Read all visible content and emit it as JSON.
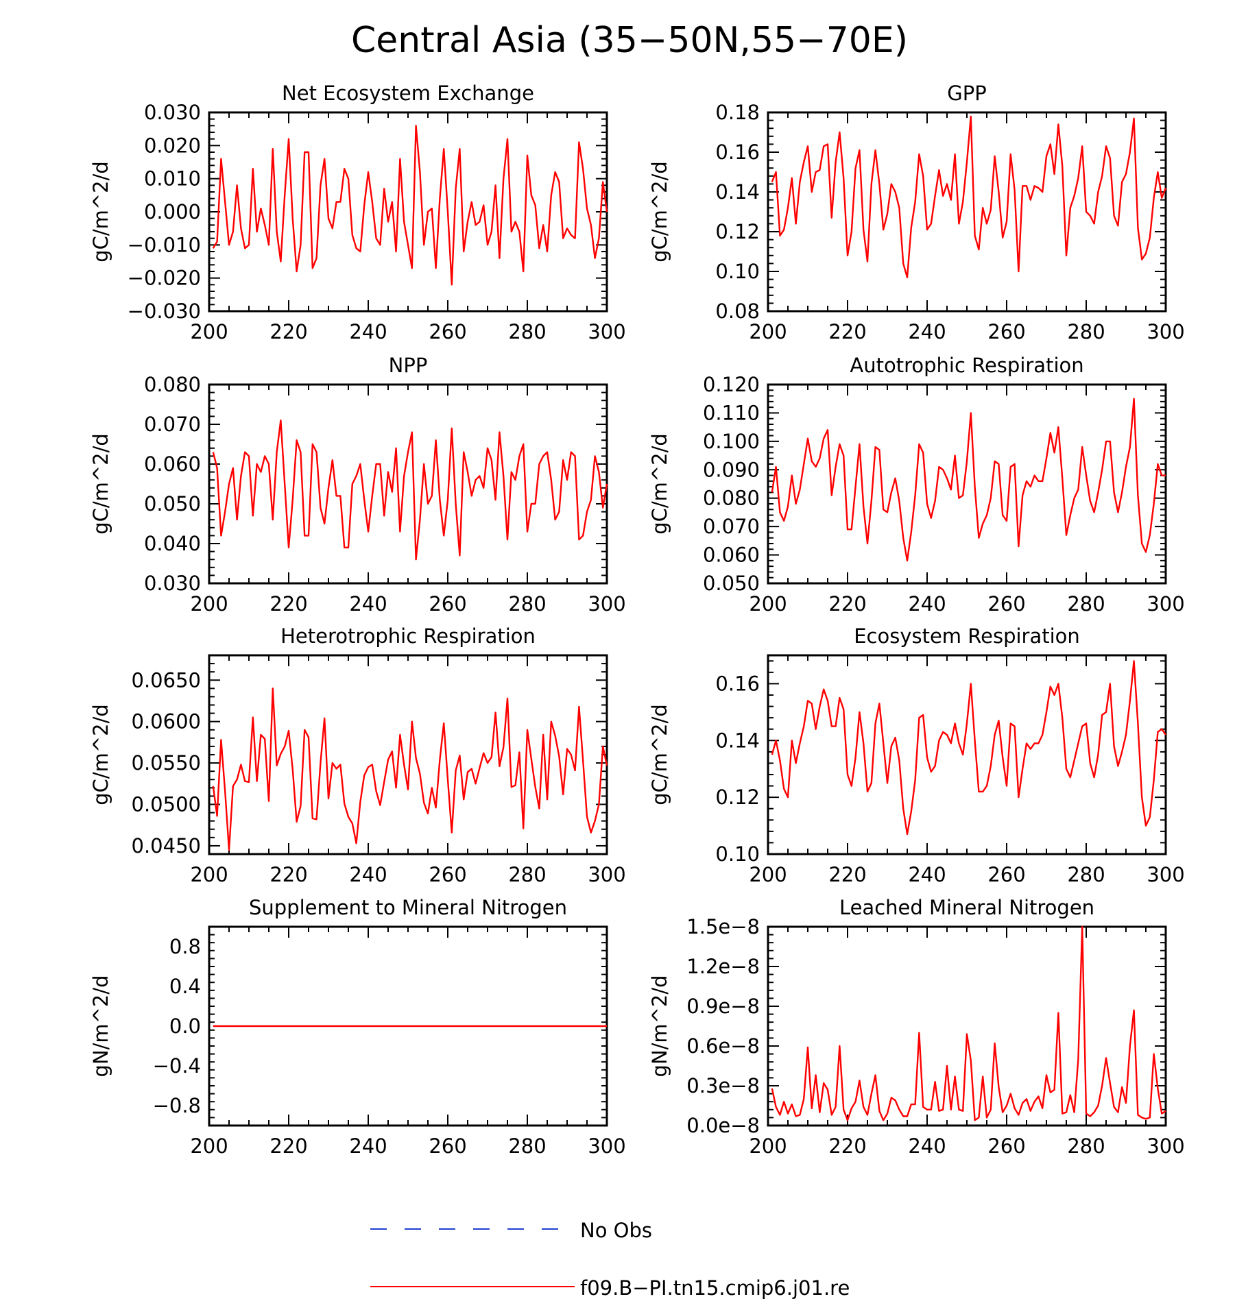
{
  "figure": {
    "title": "Central Asia (35−50N,55−70E)"
  },
  "legend": {
    "items": [
      {
        "label": "No Obs",
        "color": "#1f3fcf",
        "style": "dashed"
      },
      {
        "label": "f09.B−PI.tn15.cmip6.j01.re",
        "color": "#ff0000",
        "style": "solid"
      }
    ]
  },
  "chart_data": [
    {
      "type": "line",
      "title": "Net Ecosystem Exchange",
      "ylabel": "gC/m^2/d",
      "xlim": [
        200,
        300
      ],
      "ylim": [
        -0.03,
        0.03
      ],
      "xticks": [
        "200",
        "220",
        "240",
        "260",
        "280",
        "300"
      ],
      "yticks": [
        "−0.030",
        "−0.020",
        "−0.010",
        "0.000",
        "0.010",
        "0.020",
        "0.030"
      ],
      "series": [
        {
          "name": "f09.B−PI.tn15.cmip6.j01.re",
          "color": "#ff0000",
          "x_start": 201,
          "x_step": 1,
          "values": [
            -0.011,
            -0.009,
            0.016,
            0.003,
            -0.01,
            -0.006,
            0.008,
            -0.005,
            -0.011,
            -0.01,
            0.013,
            -0.006,
            0.001,
            -0.004,
            -0.01,
            0.019,
            -0.006,
            -0.015,
            0.005,
            0.022,
            -0.002,
            -0.018,
            -0.01,
            0.018,
            0.018,
            -0.017,
            -0.014,
            0.008,
            0.016,
            -0.002,
            -0.005,
            0.003,
            0.003,
            0.013,
            0.01,
            -0.007,
            -0.011,
            -0.012,
            0.002,
            0.012,
            0.003,
            -0.008,
            -0.01,
            0.007,
            -0.003,
            0.003,
            -0.012,
            0.016,
            -0.003,
            -0.01,
            -0.017,
            0.026,
            0.012,
            -0.01,
            0.0,
            0.001,
            -0.017,
            0.004,
            0.019,
            0.0,
            -0.022,
            0.007,
            0.019,
            -0.012,
            -0.003,
            0.003,
            -0.004,
            -0.003,
            0.002,
            -0.01,
            -0.006,
            0.008,
            -0.014,
            0.01,
            0.022,
            -0.006,
            -0.003,
            -0.006,
            -0.018,
            0.017,
            0.005,
            0.002,
            -0.011,
            -0.004,
            -0.012,
            0.005,
            0.012,
            0.009,
            -0.008,
            -0.005,
            -0.007,
            -0.008,
            0.021,
            0.013,
            0.001,
            -0.004,
            -0.014,
            -0.008,
            0.009,
            0.0
          ]
        }
      ]
    },
    {
      "type": "line",
      "title": "GPP",
      "ylabel": "gC/m^2/d",
      "xlim": [
        200,
        300
      ],
      "ylim": [
        0.08,
        0.18
      ],
      "xticks": [
        "200",
        "220",
        "240",
        "260",
        "280",
        "300"
      ],
      "yticks": [
        "0.08",
        "0.10",
        "0.12",
        "0.14",
        "0.16",
        "0.18"
      ],
      "series": [
        {
          "name": "f09.B−PI.tn15.cmip6.j01.re",
          "color": "#ff0000",
          "x_start": 201,
          "x_step": 1,
          "values": [
            0.145,
            0.15,
            0.118,
            0.121,
            0.132,
            0.147,
            0.124,
            0.145,
            0.155,
            0.163,
            0.14,
            0.15,
            0.151,
            0.163,
            0.164,
            0.127,
            0.155,
            0.17,
            0.147,
            0.108,
            0.12,
            0.152,
            0.161,
            0.121,
            0.105,
            0.144,
            0.161,
            0.144,
            0.121,
            0.129,
            0.144,
            0.14,
            0.132,
            0.104,
            0.097,
            0.122,
            0.135,
            0.159,
            0.148,
            0.121,
            0.124,
            0.138,
            0.151,
            0.138,
            0.144,
            0.136,
            0.159,
            0.124,
            0.135,
            0.155,
            0.178,
            0.118,
            0.111,
            0.132,
            0.124,
            0.131,
            0.158,
            0.14,
            0.117,
            0.125,
            0.159,
            0.141,
            0.1,
            0.143,
            0.143,
            0.136,
            0.143,
            0.142,
            0.14,
            0.158,
            0.164,
            0.149,
            0.174,
            0.153,
            0.108,
            0.132,
            0.138,
            0.147,
            0.163,
            0.13,
            0.128,
            0.124,
            0.14,
            0.148,
            0.163,
            0.157,
            0.128,
            0.123,
            0.145,
            0.149,
            0.16,
            0.177,
            0.122,
            0.106,
            0.109,
            0.117,
            0.137,
            0.15,
            0.137,
            0.142
          ]
        }
      ]
    },
    {
      "type": "line",
      "title": "NPP",
      "ylabel": "gC/m^2/d",
      "xlim": [
        200,
        300
      ],
      "ylim": [
        0.03,
        0.08
      ],
      "xticks": [
        "200",
        "220",
        "240",
        "260",
        "280",
        "300"
      ],
      "yticks": [
        "0.030",
        "0.040",
        "0.050",
        "0.060",
        "0.070",
        "0.080"
      ],
      "series": [
        {
          "name": "f09.B−PI.tn15.cmip6.j01.re",
          "color": "#ff0000",
          "x_start": 201,
          "x_step": 1,
          "values": [
            0.063,
            0.059,
            0.042,
            0.048,
            0.055,
            0.059,
            0.046,
            0.057,
            0.063,
            0.062,
            0.047,
            0.06,
            0.058,
            0.062,
            0.06,
            0.046,
            0.063,
            0.071,
            0.055,
            0.039,
            0.051,
            0.066,
            0.063,
            0.042,
            0.042,
            0.065,
            0.063,
            0.049,
            0.045,
            0.054,
            0.061,
            0.052,
            0.052,
            0.039,
            0.039,
            0.055,
            0.057,
            0.06,
            0.051,
            0.043,
            0.052,
            0.06,
            0.06,
            0.047,
            0.058,
            0.053,
            0.064,
            0.043,
            0.057,
            0.063,
            0.068,
            0.036,
            0.046,
            0.06,
            0.05,
            0.052,
            0.066,
            0.051,
            0.042,
            0.051,
            0.069,
            0.05,
            0.037,
            0.063,
            0.058,
            0.052,
            0.056,
            0.057,
            0.054,
            0.064,
            0.061,
            0.051,
            0.068,
            0.057,
            0.041,
            0.058,
            0.056,
            0.062,
            0.065,
            0.043,
            0.05,
            0.05,
            0.06,
            0.062,
            0.063,
            0.056,
            0.046,
            0.048,
            0.061,
            0.056,
            0.063,
            0.062,
            0.041,
            0.042,
            0.048,
            0.051,
            0.062,
            0.058,
            0.049,
            0.055
          ]
        }
      ]
    },
    {
      "type": "line",
      "title": "Autotrophic Respiration",
      "ylabel": "gC/m^2/d",
      "xlim": [
        200,
        300
      ],
      "ylim": [
        0.05,
        0.12
      ],
      "xticks": [
        "200",
        "220",
        "240",
        "260",
        "280",
        "300"
      ],
      "yticks": [
        "0.050",
        "0.060",
        "0.070",
        "0.080",
        "0.090",
        "0.100",
        "0.110",
        "0.120"
      ],
      "series": [
        {
          "name": "f09.B−PI.tn15.cmip6.j01.re",
          "color": "#ff0000",
          "x_start": 201,
          "x_step": 1,
          "values": [
            0.082,
            0.091,
            0.075,
            0.072,
            0.077,
            0.088,
            0.078,
            0.083,
            0.092,
            0.101,
            0.093,
            0.091,
            0.094,
            0.101,
            0.104,
            0.081,
            0.091,
            0.099,
            0.095,
            0.069,
            0.069,
            0.084,
            0.099,
            0.077,
            0.064,
            0.079,
            0.098,
            0.097,
            0.076,
            0.075,
            0.082,
            0.087,
            0.079,
            0.066,
            0.058,
            0.068,
            0.081,
            0.099,
            0.096,
            0.078,
            0.073,
            0.079,
            0.091,
            0.09,
            0.087,
            0.083,
            0.095,
            0.08,
            0.081,
            0.093,
            0.11,
            0.084,
            0.066,
            0.071,
            0.074,
            0.08,
            0.093,
            0.092,
            0.074,
            0.072,
            0.091,
            0.092,
            0.063,
            0.081,
            0.086,
            0.084,
            0.088,
            0.086,
            0.086,
            0.094,
            0.103,
            0.096,
            0.105,
            0.087,
            0.067,
            0.074,
            0.08,
            0.083,
            0.098,
            0.088,
            0.079,
            0.075,
            0.082,
            0.09,
            0.1,
            0.1,
            0.082,
            0.075,
            0.082,
            0.091,
            0.098,
            0.115,
            0.081,
            0.064,
            0.061,
            0.067,
            0.078,
            0.092,
            0.088,
            0.088
          ]
        }
      ]
    },
    {
      "type": "line",
      "title": "Heterotrophic Respiration",
      "ylabel": "gC/m^2/d",
      "xlim": [
        200,
        300
      ],
      "ylim": [
        0.044,
        0.068
      ],
      "xticks": [
        "200",
        "220",
        "240",
        "260",
        "280",
        "300"
      ],
      "yticks": [
        "0.0450",
        "0.0500",
        "0.0550",
        "0.0600",
        "0.0650"
      ],
      "series": [
        {
          "name": "f09.B−PI.tn15.cmip6.j01.re",
          "color": "#ff0000",
          "x_start": 201,
          "x_step": 1,
          "values": [
            0.0522,
            0.0486,
            0.0578,
            0.0516,
            0.0445,
            0.0522,
            0.053,
            0.0548,
            0.0528,
            0.0527,
            0.0605,
            0.0528,
            0.0584,
            0.0579,
            0.0504,
            0.064,
            0.0547,
            0.0561,
            0.057,
            0.0589,
            0.0542,
            0.0479,
            0.0498,
            0.059,
            0.0581,
            0.0483,
            0.0482,
            0.055,
            0.0604,
            0.0507,
            0.055,
            0.0543,
            0.0548,
            0.0501,
            0.0485,
            0.0477,
            0.0453,
            0.0503,
            0.0535,
            0.0545,
            0.0548,
            0.0516,
            0.0499,
            0.0527,
            0.0554,
            0.0564,
            0.052,
            0.0584,
            0.0548,
            0.0518,
            0.06,
            0.0556,
            0.0537,
            0.0502,
            0.0489,
            0.052,
            0.0496,
            0.0554,
            0.0598,
            0.053,
            0.0466,
            0.0541,
            0.0559,
            0.0506,
            0.0539,
            0.0543,
            0.0525,
            0.0544,
            0.0562,
            0.055,
            0.0557,
            0.0611,
            0.0546,
            0.0569,
            0.0628,
            0.0521,
            0.0523,
            0.0563,
            0.0471,
            0.059,
            0.0555,
            0.0521,
            0.0495,
            0.0584,
            0.0506,
            0.06,
            0.0583,
            0.0558,
            0.0512,
            0.0567,
            0.056,
            0.0541,
            0.0618,
            0.0553,
            0.0485,
            0.0466,
            0.048,
            0.05,
            0.057,
            0.0547
          ]
        }
      ]
    },
    {
      "type": "line",
      "title": "Ecosystem Respiration",
      "ylabel": "gC/m^2/d",
      "xlim": [
        200,
        300
      ],
      "ylim": [
        0.1,
        0.17
      ],
      "xticks": [
        "200",
        "220",
        "240",
        "260",
        "280",
        "300"
      ],
      "yticks": [
        "0.10",
        "0.12",
        "0.14",
        "0.16"
      ],
      "series": [
        {
          "name": "f09.B−PI.tn15.cmip6.j01.re",
          "color": "#ff0000",
          "x_start": 201,
          "x_step": 1,
          "values": [
            0.135,
            0.14,
            0.133,
            0.123,
            0.12,
            0.14,
            0.132,
            0.139,
            0.145,
            0.154,
            0.153,
            0.144,
            0.152,
            0.158,
            0.154,
            0.145,
            0.145,
            0.155,
            0.151,
            0.128,
            0.124,
            0.134,
            0.15,
            0.139,
            0.122,
            0.125,
            0.146,
            0.153,
            0.139,
            0.125,
            0.138,
            0.141,
            0.133,
            0.116,
            0.107,
            0.115,
            0.126,
            0.148,
            0.149,
            0.134,
            0.129,
            0.131,
            0.14,
            0.143,
            0.142,
            0.139,
            0.146,
            0.139,
            0.135,
            0.146,
            0.16,
            0.14,
            0.122,
            0.122,
            0.124,
            0.131,
            0.142,
            0.147,
            0.134,
            0.124,
            0.146,
            0.145,
            0.12,
            0.13,
            0.139,
            0.137,
            0.139,
            0.139,
            0.142,
            0.15,
            0.159,
            0.156,
            0.16,
            0.148,
            0.13,
            0.127,
            0.133,
            0.139,
            0.145,
            0.146,
            0.132,
            0.127,
            0.135,
            0.149,
            0.15,
            0.16,
            0.138,
            0.131,
            0.136,
            0.142,
            0.154,
            0.168,
            0.146,
            0.12,
            0.11,
            0.113,
            0.126,
            0.143,
            0.144,
            0.142
          ]
        }
      ]
    },
    {
      "type": "line",
      "title": "Supplement to Mineral Nitrogen",
      "ylabel": "gN/m^2/d",
      "xlim": [
        200,
        300
      ],
      "ylim": [
        -1.0,
        1.0
      ],
      "xticks": [
        "200",
        "220",
        "240",
        "260",
        "280",
        "300"
      ],
      "yticks": [
        "−0.8",
        "−0.4",
        "0.0",
        "0.4",
        "0.8"
      ],
      "series": [
        {
          "name": "f09.B−PI.tn15.cmip6.j01.re",
          "color": "#ff0000",
          "x": [
            201,
            300
          ],
          "values": [
            0.0,
            0.0
          ]
        }
      ]
    },
    {
      "type": "line",
      "title": "Leached Mineral Nitrogen",
      "ylabel": "gN/m^2/d",
      "xlim": [
        200,
        300
      ],
      "ylim": [
        0.0,
        1.5
      ],
      "y_unit_note": "×1e−8",
      "xticks": [
        "200",
        "220",
        "240",
        "260",
        "280",
        "300"
      ],
      "yticks": [
        "0.0e−8",
        "0.3e−8",
        "0.6e−8",
        "0.9e−8",
        "1.2e−8",
        "1.5e−8"
      ],
      "series": [
        {
          "name": "f09.B−PI.tn15.cmip6.j01.re",
          "color": "#ff0000",
          "x_start": 201,
          "x_step": 1,
          "values": [
            0.28,
            0.14,
            0.08,
            0.18,
            0.09,
            0.16,
            0.07,
            0.08,
            0.2,
            0.59,
            0.13,
            0.38,
            0.1,
            0.32,
            0.27,
            0.08,
            0.14,
            0.6,
            0.12,
            0.04,
            0.13,
            0.18,
            0.34,
            0.14,
            0.08,
            0.24,
            0.38,
            0.11,
            0.04,
            0.09,
            0.21,
            0.19,
            0.12,
            0.07,
            0.07,
            0.16,
            0.16,
            0.7,
            0.14,
            0.12,
            0.12,
            0.33,
            0.11,
            0.12,
            0.45,
            0.12,
            0.37,
            0.12,
            0.11,
            0.69,
            0.49,
            0.04,
            0.06,
            0.37,
            0.06,
            0.12,
            0.62,
            0.29,
            0.1,
            0.15,
            0.24,
            0.13,
            0.08,
            0.17,
            0.2,
            0.11,
            0.18,
            0.22,
            0.13,
            0.38,
            0.25,
            0.27,
            0.85,
            0.09,
            0.1,
            0.23,
            0.1,
            0.5,
            1.5,
            0.09,
            0.07,
            0.1,
            0.15,
            0.3,
            0.51,
            0.32,
            0.14,
            0.1,
            0.29,
            0.17,
            0.6,
            0.87,
            0.08,
            0.06,
            0.05,
            0.06,
            0.54,
            0.28,
            0.09,
            0.11
          ]
        }
      ]
    }
  ]
}
